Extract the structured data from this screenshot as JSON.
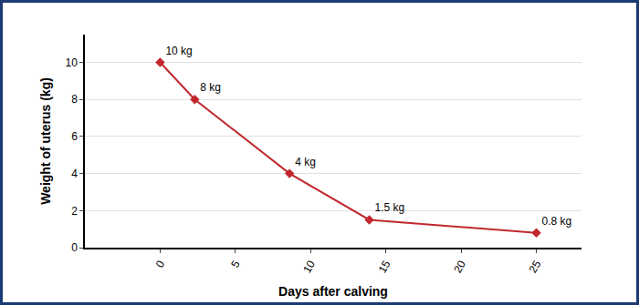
{
  "chart_data": {
    "type": "line",
    "x_label": "Days after calving",
    "y_label": "Weight of uterus (kg)",
    "x": [
      0,
      2.3,
      8.6,
      13.9,
      25
    ],
    "values": [
      10,
      8,
      4,
      1.5,
      0.8
    ],
    "value_labels": [
      "10 kg",
      "8 kg",
      "4 kg",
      "1.5 kg",
      "0.8 kg"
    ],
    "data_labels": true,
    "color": "#c0282d",
    "marker": "diamond",
    "xlim": [
      -5,
      28
    ],
    "xticks": [
      0,
      5,
      10,
      15,
      20,
      25
    ],
    "ylim": [
      0,
      11.5
    ],
    "yticks": [
      0,
      2,
      4,
      6,
      8,
      10
    ],
    "grid": true
  }
}
